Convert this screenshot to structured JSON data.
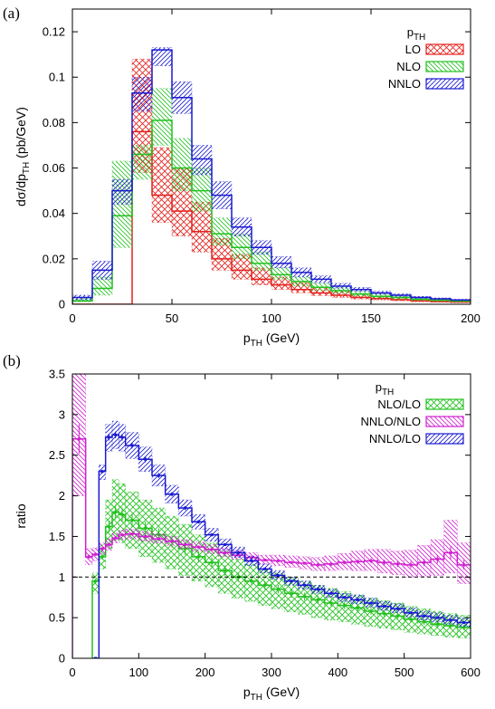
{
  "colors": {
    "LO": "#e4211c",
    "NLO": "#22c11f",
    "NNLO": "#1a1ad0",
    "NNLO/NLO": "#d01fd0"
  },
  "chart_data": [
    {
      "panel_label": "(a)",
      "type": "line",
      "style": "step histogram with hatched uncertainty bands",
      "xlabel": {
        "main": "p",
        "sub": "TH",
        "suffix": " (GeV)"
      },
      "ylabel": {
        "main": "dσ/dp",
        "sub": "TH",
        "suffix": " (pb/GeV)"
      },
      "xlim": [
        0,
        200
      ],
      "ylim": [
        0,
        0.13
      ],
      "xticks": [
        "0",
        "50",
        "100",
        "150",
        "200"
      ],
      "yticks": [
        "0",
        "0.02",
        "0.04",
        "0.06",
        "0.08",
        "0.1",
        "0.12"
      ],
      "legend": {
        "position": "top-right",
        "title_main": "p",
        "title_sub": "TH"
      },
      "bin_edges": [
        0,
        10,
        20,
        30,
        40,
        50,
        60,
        70,
        80,
        90,
        100,
        110,
        120,
        130,
        140,
        150,
        160,
        170,
        180,
        190,
        200
      ],
      "series": [
        {
          "name": "LO",
          "color_key": "LO",
          "values": [
            0,
            0,
            0,
            0.076,
            0.048,
            0.041,
            0.032,
            0.02,
            0.015,
            0.011,
            0.0085,
            0.0065,
            0.005,
            0.004,
            0.003,
            0.0025,
            0.002,
            0.0015,
            0.0012,
            0.001
          ],
          "band_low": [
            0,
            0,
            0,
            0.058,
            0.036,
            0.03,
            0.023,
            0.015,
            0.011,
            0.0085,
            0.0065,
            0.005,
            0.0038,
            0.003,
            0.0023,
            0.0019,
            0.0015,
            0.0011,
            0.0009,
            0.0007
          ],
          "band_high": [
            0,
            0,
            0,
            0.108,
            0.069,
            0.06,
            0.045,
            0.029,
            0.022,
            0.016,
            0.012,
            0.0095,
            0.0072,
            0.0058,
            0.0044,
            0.0036,
            0.0029,
            0.0022,
            0.0018,
            0.0014
          ]
        },
        {
          "name": "NLO",
          "color_key": "NLO",
          "values": [
            0.0015,
            0.007,
            0.039,
            0.066,
            0.081,
            0.06,
            0.05,
            0.031,
            0.025,
            0.018,
            0.013,
            0.01,
            0.0075,
            0.006,
            0.0045,
            0.0035,
            0.003,
            0.0022,
            0.0018,
            0.0014
          ],
          "band_low": [
            0.001,
            0.004,
            0.025,
            0.055,
            0.07,
            0.05,
            0.041,
            0.026,
            0.02,
            0.015,
            0.011,
            0.008,
            0.006,
            0.0048,
            0.0036,
            0.0028,
            0.0023,
            0.0017,
            0.0014,
            0.0011
          ],
          "band_high": [
            0.0025,
            0.012,
            0.063,
            0.07,
            0.095,
            0.073,
            0.06,
            0.038,
            0.031,
            0.023,
            0.016,
            0.012,
            0.0092,
            0.0074,
            0.0056,
            0.0044,
            0.0036,
            0.0028,
            0.0022,
            0.0018
          ]
        },
        {
          "name": "NNLO",
          "color_key": "NNLO",
          "values": [
            0.003,
            0.015,
            0.05,
            0.093,
            0.112,
            0.091,
            0.064,
            0.048,
            0.034,
            0.025,
            0.018,
            0.014,
            0.011,
            0.008,
            0.0065,
            0.005,
            0.004,
            0.003,
            0.0024,
            0.0019
          ],
          "band_low": [
            0.002,
            0.011,
            0.044,
            0.085,
            0.105,
            0.084,
            0.057,
            0.042,
            0.03,
            0.022,
            0.016,
            0.012,
            0.0095,
            0.0071,
            0.0056,
            0.0044,
            0.0035,
            0.0026,
            0.0021,
            0.0016
          ],
          "band_high": [
            0.004,
            0.019,
            0.055,
            0.1,
            0.113,
            0.098,
            0.07,
            0.054,
            0.038,
            0.028,
            0.021,
            0.016,
            0.0125,
            0.0092,
            0.0074,
            0.0057,
            0.0046,
            0.0035,
            0.0028,
            0.0022
          ]
        }
      ]
    },
    {
      "panel_label": "(b)",
      "type": "line",
      "style": "step histogram ratios with error bars and hatched bands",
      "xlabel": {
        "main": "p",
        "sub": "TH",
        "suffix": " (GeV)"
      },
      "ylabel": {
        "main": "ratio",
        "sub": "",
        "suffix": ""
      },
      "xlim": [
        0,
        600
      ],
      "ylim": [
        0,
        3.5
      ],
      "xticks": [
        "0",
        "100",
        "200",
        "300",
        "400",
        "500",
        "600"
      ],
      "yticks": [
        "0",
        "0.5",
        "1",
        "1.5",
        "2",
        "2.5",
        "3",
        "3.5"
      ],
      "reference_line": 1,
      "legend": {
        "position": "top-right",
        "title_main": "p",
        "title_sub": "TH"
      },
      "x": [
        0,
        20,
        30,
        40,
        50,
        60,
        70,
        80,
        100,
        120,
        140,
        160,
        180,
        200,
        220,
        240,
        260,
        280,
        300,
        320,
        340,
        360,
        380,
        400,
        420,
        440,
        460,
        480,
        500,
        520,
        540,
        560,
        580,
        600
      ],
      "series": [
        {
          "name": "NLO/LO",
          "color_key": "NLO",
          "values": [
            null,
            null,
            0.95,
            1.25,
            1.62,
            1.8,
            1.77,
            1.7,
            1.6,
            1.52,
            1.44,
            1.35,
            1.25,
            1.18,
            1.08,
            1.0,
            0.95,
            0.9,
            0.85,
            0.8,
            0.76,
            0.72,
            0.68,
            0.65,
            0.62,
            0.58,
            0.55,
            0.52,
            0.48,
            0.45,
            0.42,
            0.4,
            0.38,
            0.36
          ],
          "band_low": [
            null,
            null,
            0.8,
            1.1,
            1.35,
            1.45,
            1.42,
            1.35,
            1.25,
            1.18,
            1.1,
            1.02,
            0.95,
            0.88,
            0.8,
            0.74,
            0.7,
            0.65,
            0.61,
            0.57,
            0.54,
            0.5,
            0.47,
            0.45,
            0.42,
            0.39,
            0.37,
            0.35,
            0.32,
            0.3,
            0.28,
            0.26,
            0.25,
            0.24
          ],
          "band_high": [
            null,
            null,
            1.05,
            1.4,
            1.95,
            2.2,
            2.15,
            2.05,
            1.95,
            1.85,
            1.75,
            1.65,
            1.52,
            1.42,
            1.32,
            1.22,
            1.16,
            1.1,
            1.05,
            1.0,
            0.95,
            0.9,
            0.86,
            0.82,
            0.78,
            0.74,
            0.71,
            0.68,
            0.64,
            0.61,
            0.58,
            0.55,
            0.53,
            0.51
          ]
        },
        {
          "name": "NNLO/NLO",
          "color_key": "NNLO/NLO",
          "values": [
            2.7,
            1.25,
            1.28,
            1.35,
            1.4,
            1.48,
            1.52,
            1.53,
            1.5,
            1.47,
            1.44,
            1.4,
            1.37,
            1.34,
            1.3,
            1.27,
            1.24,
            1.21,
            1.2,
            1.18,
            1.17,
            1.15,
            1.16,
            1.18,
            1.19,
            1.2,
            1.18,
            1.16,
            1.15,
            1.18,
            1.22,
            1.3,
            1.15,
            1.12
          ],
          "band_low": [
            2.0,
            1.15,
            1.2,
            1.28,
            1.33,
            1.42,
            1.46,
            1.47,
            1.44,
            1.42,
            1.39,
            1.35,
            1.32,
            1.29,
            1.25,
            1.22,
            1.19,
            1.16,
            1.14,
            1.12,
            1.1,
            1.08,
            1.08,
            1.09,
            1.08,
            1.08,
            1.05,
            1.03,
            1.0,
            1.01,
            1.02,
            1.05,
            0.92,
            0.9
          ],
          "band_high": [
            3.5,
            1.35,
            1.36,
            1.42,
            1.47,
            1.54,
            1.58,
            1.59,
            1.56,
            1.53,
            1.5,
            1.46,
            1.43,
            1.4,
            1.36,
            1.33,
            1.3,
            1.27,
            1.27,
            1.26,
            1.25,
            1.24,
            1.26,
            1.29,
            1.32,
            1.34,
            1.34,
            1.32,
            1.33,
            1.39,
            1.46,
            1.7,
            1.42,
            1.42
          ]
        },
        {
          "name": "NNLO/LO",
          "color_key": "NNLO",
          "values": [
            null,
            null,
            0.0,
            2.3,
            2.72,
            2.75,
            2.72,
            2.62,
            2.45,
            2.25,
            2.02,
            1.85,
            1.68,
            1.52,
            1.4,
            1.3,
            1.2,
            1.1,
            1.02,
            0.95,
            0.9,
            0.85,
            0.8,
            0.75,
            0.72,
            0.68,
            0.64,
            0.61,
            0.56,
            0.52,
            0.5,
            0.47,
            0.44,
            0.41
          ],
          "band_low": [
            null,
            null,
            0.0,
            2.2,
            2.55,
            2.58,
            2.55,
            2.46,
            2.3,
            2.12,
            1.91,
            1.75,
            1.59,
            1.44,
            1.33,
            1.24,
            1.14,
            1.05,
            0.97,
            0.9,
            0.85,
            0.8,
            0.75,
            0.7,
            0.67,
            0.63,
            0.59,
            0.56,
            0.51,
            0.47,
            0.45,
            0.42,
            0.39,
            0.36
          ],
          "band_high": [
            null,
            null,
            0.0,
            2.38,
            2.88,
            2.92,
            2.88,
            2.78,
            2.6,
            2.38,
            2.13,
            1.95,
            1.77,
            1.6,
            1.47,
            1.37,
            1.26,
            1.16,
            1.08,
            1.0,
            0.95,
            0.9,
            0.85,
            0.8,
            0.78,
            0.74,
            0.7,
            0.67,
            0.62,
            0.58,
            0.56,
            0.53,
            0.5,
            0.47
          ]
        }
      ]
    }
  ]
}
